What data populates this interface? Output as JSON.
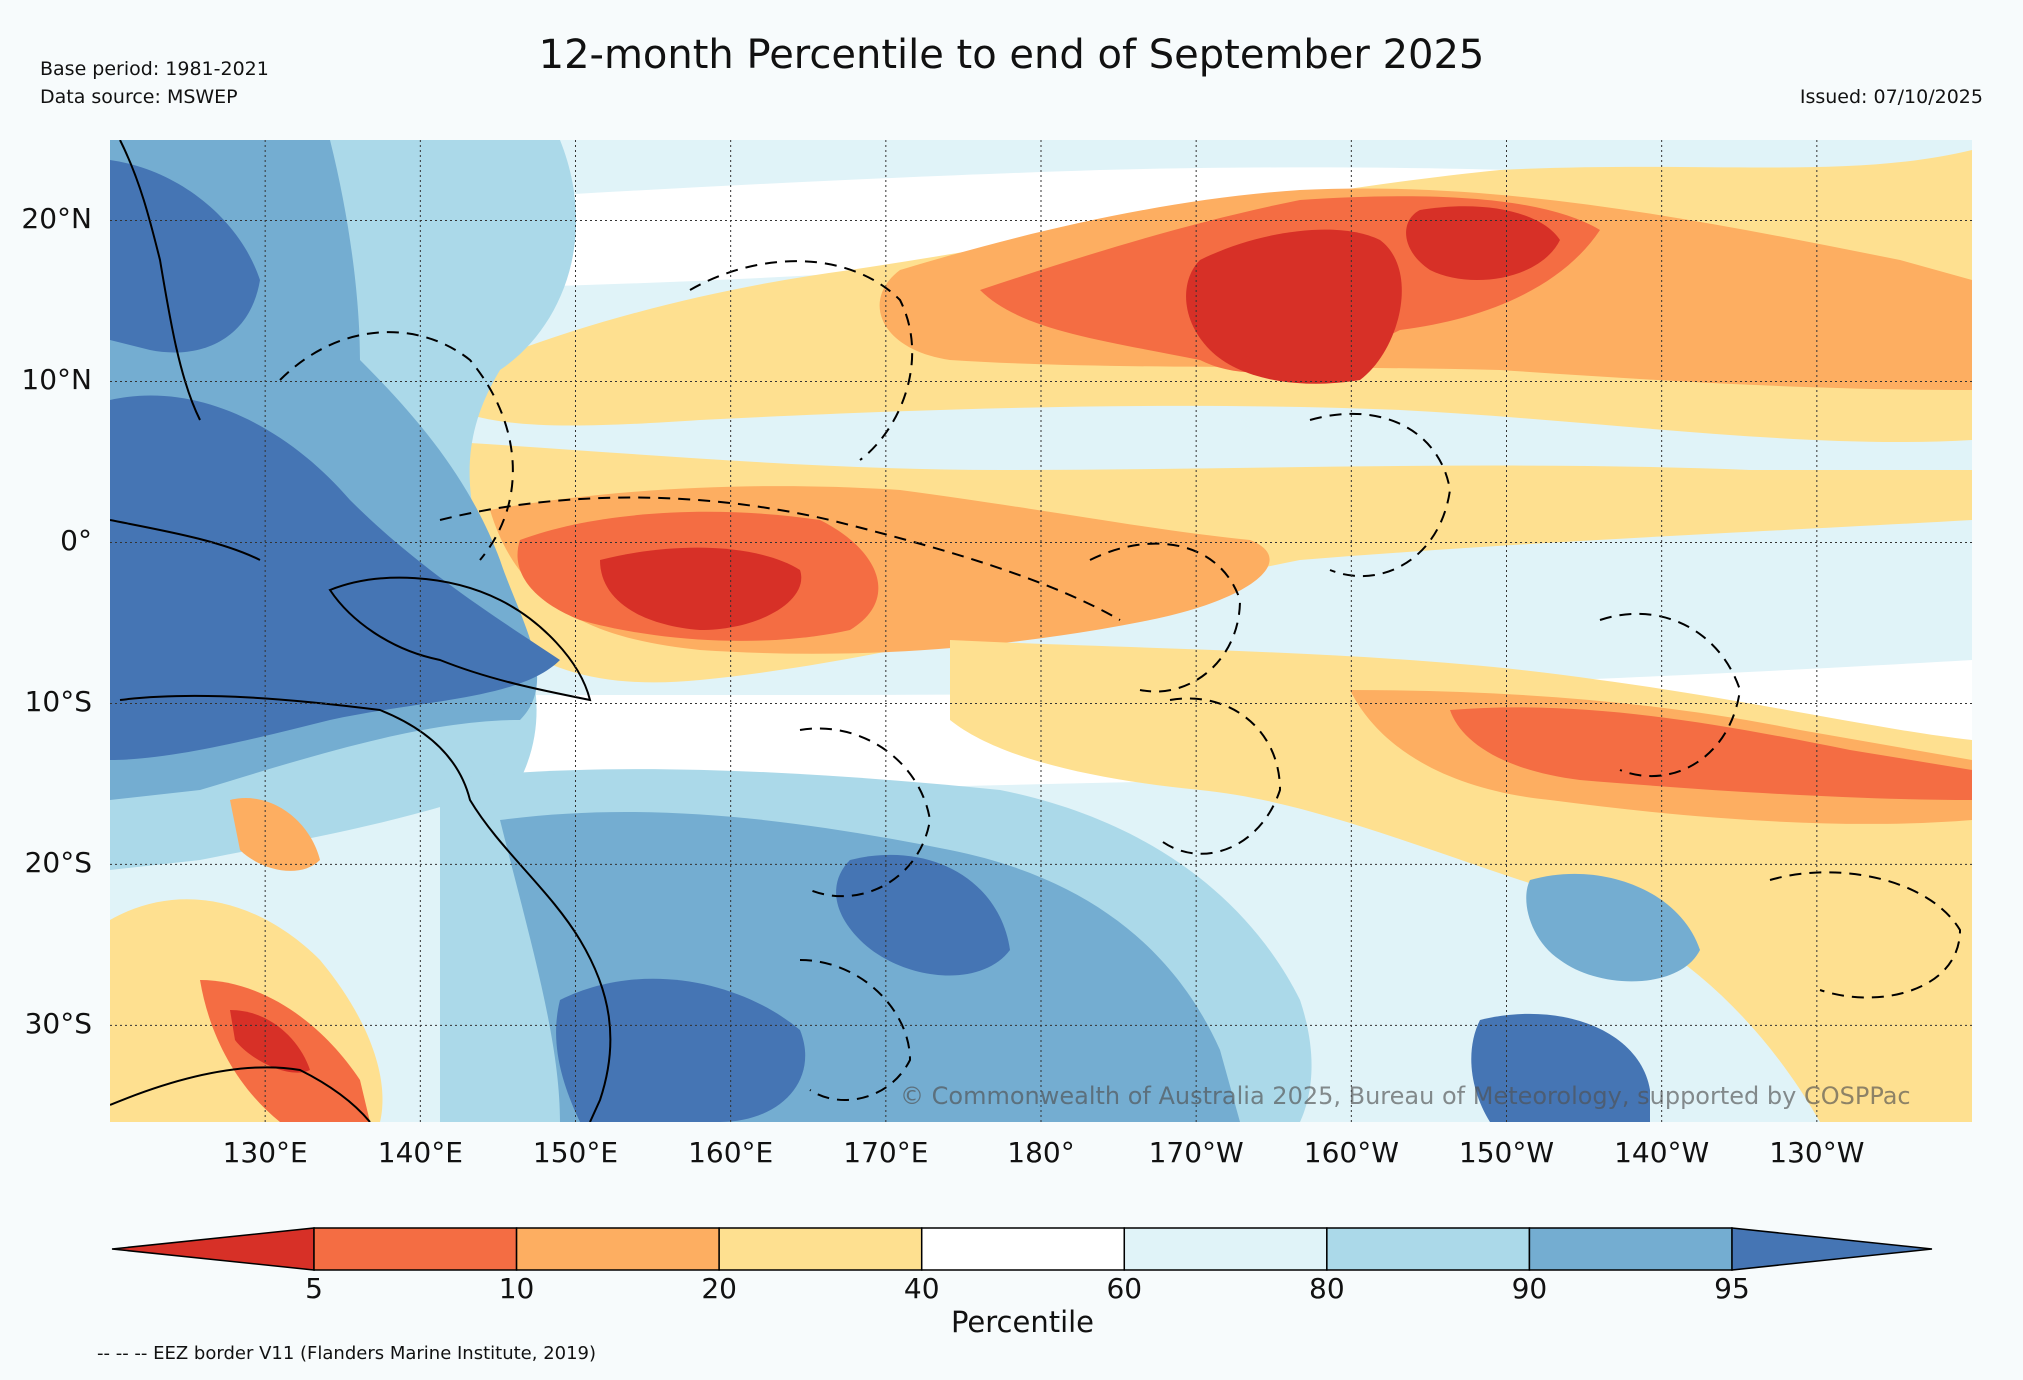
{
  "header": {
    "title": "12-month Percentile to end of September 2025",
    "base_period": "Base period: 1981-2021",
    "data_source": "Data source: MSWEP",
    "issued": "Issued: 07/10/2025"
  },
  "map": {
    "lat_range": [
      -36,
      25
    ],
    "lon_range": [
      120,
      240
    ],
    "lat_tick_labels": [
      "20°N",
      "10°N",
      "0°",
      "10°S",
      "20°S",
      "30°S"
    ],
    "lat_tick_values": [
      20,
      10,
      0,
      -10,
      -20,
      -30
    ],
    "lon_tick_labels": [
      "130°E",
      "140°E",
      "150°E",
      "160°E",
      "170°E",
      "180°",
      "170°W",
      "160°W",
      "150°W",
      "140°W",
      "130°W"
    ],
    "lon_tick_values": [
      130,
      140,
      150,
      160,
      170,
      180,
      190,
      200,
      210,
      220,
      230
    ],
    "copyright": "© Commonwealth of Australia 2025, Bureau of Meteorology, supported by COSPPac"
  },
  "colorbar": {
    "label": "Percentile",
    "ticks": [
      "5",
      "10",
      "20",
      "40",
      "60",
      "80",
      "90",
      "95"
    ],
    "colors": [
      "#d73027",
      "#f46d43",
      "#fdae61",
      "#fee090",
      "#ffffff",
      "#e0f3f8",
      "#abd9e9",
      "#74add1",
      "#4575b4"
    ]
  },
  "footer": {
    "eez_note": "-- -- -- EEZ border V11 (Flanders Marine Institute, 2019)"
  }
}
